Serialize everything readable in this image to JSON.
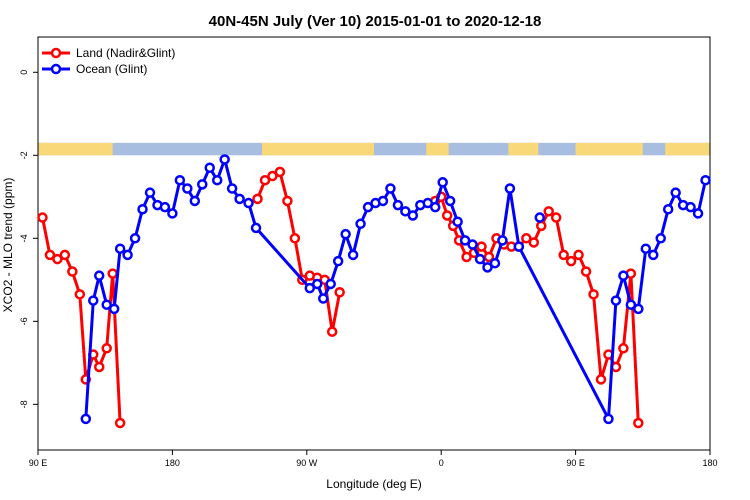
{
  "chart_data": {
    "type": "line",
    "title": "40N-45N July (Ver 10)   2015-01-01 to 2020-12-18",
    "xlabel": "Longitude (deg E)",
    "ylabel": "XCO2 - MLO trend (ppm)",
    "x_ticks": [
      {
        "value": 90,
        "label": "90 E"
      },
      {
        "value": 180,
        "label": "180"
      },
      {
        "value": 270,
        "label": "90 W"
      },
      {
        "value": 360,
        "label": "0"
      },
      {
        "value": 450,
        "label": "90 E"
      },
      {
        "value": 540,
        "label": "180"
      }
    ],
    "y_ticks": [
      {
        "value": 0,
        "label": "0"
      },
      {
        "value": -2,
        "label": "-2"
      },
      {
        "value": -4,
        "label": "-4"
      },
      {
        "value": -6,
        "label": "-6"
      },
      {
        "value": -8,
        "label": "-8"
      }
    ],
    "xlim": [
      90,
      540
    ],
    "ylim": [
      -9.1,
      0.85
    ],
    "grid": false,
    "legend_position": "top-left",
    "land_ocean_strip": {
      "y_range": [
        -1.7,
        -2.0
      ],
      "land_color": "#f8d878",
      "ocean_color": "#a8bee0",
      "land_segments": [
        [
          90,
          140
        ],
        [
          240,
          315
        ],
        [
          350,
          365
        ],
        [
          405,
          425
        ],
        [
          450,
          495
        ],
        [
          510,
          540
        ]
      ]
    },
    "series": [
      {
        "name": "Land (Nadir&Glint)",
        "color": "#ff0000",
        "x": [
          93,
          98,
          103,
          108,
          113,
          118,
          122,
          127,
          131,
          136,
          140,
          145,
          149,
          237,
          242,
          247,
          252,
          257,
          262,
          267,
          272,
          277,
          282,
          287,
          292,
          297,
          301,
          356,
          360,
          364,
          368,
          372,
          377,
          382,
          387,
          392,
          397,
          402,
          407,
          412,
          417,
          422,
          427,
          432,
          437,
          442,
          447,
          452,
          457,
          462,
          467,
          472,
          477,
          482,
          487,
          492,
          497,
          502,
          507,
          512,
          517,
          522,
          527,
          531,
          536
        ],
        "values": [
          -3.5,
          -4.4,
          -4.5,
          -4.4,
          -4.8,
          -5.35,
          -7.4,
          -6.8,
          -7.1,
          -6.65,
          -4.85,
          -8.45,
          null,
          -3.05,
          -2.6,
          -2.5,
          -2.4,
          -3.1,
          -4.0,
          -5.0,
          -4.9,
          -4.95,
          -5.0,
          -6.25,
          -5.3,
          null,
          null,
          -3.1,
          -3.0,
          -3.45,
          -3.7,
          -4.05,
          -4.45,
          -4.35,
          -4.2,
          -4.45,
          -4.0,
          -4.15,
          -4.2,
          -4.2,
          -4.0,
          -4.1,
          -3.7,
          -3.35,
          -3.5,
          -4.4,
          -4.55,
          -4.4,
          -4.8,
          -5.35,
          -7.4,
          -6.8,
          -7.1,
          -6.65,
          -4.85,
          -8.45,
          null,
          null,
          null,
          null,
          null,
          null,
          null,
          null,
          null
        ]
      },
      {
        "name": "Ocean (Glint)",
        "color": "#0000ff",
        "x": [
          122,
          127,
          131,
          136,
          141,
          145,
          150,
          155,
          160,
          165,
          170,
          175,
          180,
          185,
          190,
          195,
          200,
          205,
          210,
          215,
          220,
          225,
          231,
          236,
          272,
          277,
          281,
          286,
          291,
          296,
          301,
          306,
          311,
          316,
          321,
          326,
          331,
          336,
          341,
          346,
          351,
          356,
          361,
          366,
          371,
          376,
          381,
          386,
          391,
          396,
          401,
          406,
          412,
          472,
          477,
          482,
          487,
          492,
          497,
          502,
          507,
          512,
          517,
          522,
          527,
          532,
          537
        ],
        "values": [
          -8.35,
          -5.5,
          -4.9,
          -5.6,
          -5.7,
          -4.25,
          -4.4,
          -4.0,
          -3.3,
          -2.9,
          -3.2,
          -3.25,
          -3.4,
          -2.6,
          -2.8,
          -3.1,
          -2.7,
          -2.3,
          -2.6,
          -2.1,
          -2.8,
          -3.05,
          -3.15,
          -3.75,
          -5.2,
          -5.1,
          -5.45,
          -5.1,
          -4.55,
          -3.9,
          -4.4,
          -3.65,
          -3.25,
          -3.15,
          -3.1,
          -2.8,
          -3.2,
          -3.35,
          -3.45,
          -3.2,
          -3.15,
          -3.25,
          -2.65,
          -3.1,
          -3.6,
          -4.05,
          -4.15,
          -4.5,
          -4.7,
          -4.6,
          -4.05,
          -2.8,
          -4.2,
          -8.35,
          -5.5,
          -4.9,
          -5.6,
          -5.7,
          -4.25,
          -4.4,
          -4.0,
          -3.3,
          -2.9,
          -3.2,
          -3.25,
          -3.4,
          -2.6
        ]
      }
    ],
    "isolated_points": [
      {
        "series": "Ocean (Glint)",
        "x": 426,
        "value": -3.5
      }
    ]
  }
}
